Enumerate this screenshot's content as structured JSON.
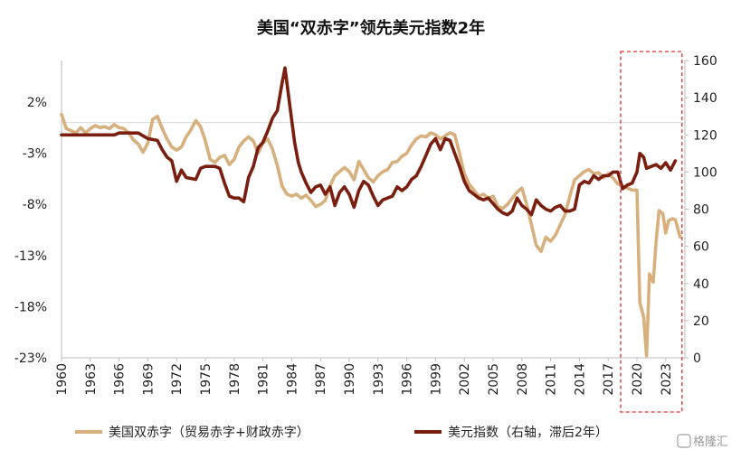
{
  "chart_data": {
    "type": "line",
    "title": "美国“双赤字”领先美元指数2年",
    "x_ticks": [
      "1960",
      "1963",
      "1966",
      "1969",
      "1972",
      "1975",
      "1978",
      "1981",
      "1984",
      "1987",
      "1990",
      "1993",
      "1996",
      "1999",
      "2002",
      "2005",
      "2008",
      "2011",
      "2014",
      "2017",
      "2020",
      "2023"
    ],
    "x_range": [
      1960,
      2025
    ],
    "left_axis": {
      "ticks": [
        "2%",
        "-3%",
        "-8%",
        "-13%",
        "-18%",
        "-23%"
      ],
      "range": [
        -23,
        2
      ],
      "unit": "%"
    },
    "right_axis": {
      "ticks": [
        "160",
        "140",
        "120",
        "100",
        "80",
        "60",
        "40",
        "20",
        "0"
      ],
      "range": [
        0,
        160
      ]
    },
    "reference_line": {
      "axis": "left",
      "value": 0
    },
    "highlight": {
      "x_range": [
        2018.3,
        2024.7
      ],
      "style": "dashed",
      "color": "#e03030"
    },
    "legend_position": "bottom",
    "series": [
      {
        "name": "美国双赤字（贸易赤字+财政赤字）",
        "axis": "left",
        "color": "#d8b07e",
        "points": [
          [
            1960.0,
            0.8
          ],
          [
            1960.5,
            -0.6
          ],
          [
            1961.0,
            -0.8
          ],
          [
            1961.5,
            -1.0
          ],
          [
            1962.0,
            -0.5
          ],
          [
            1962.5,
            -1.0
          ],
          [
            1963.0,
            -0.6
          ],
          [
            1963.5,
            -0.3
          ],
          [
            1964.0,
            -0.5
          ],
          [
            1964.5,
            -0.4
          ],
          [
            1965.0,
            -0.6
          ],
          [
            1965.5,
            -0.2
          ],
          [
            1966.0,
            -0.5
          ],
          [
            1966.5,
            -0.6
          ],
          [
            1967.0,
            -1.0
          ],
          [
            1967.5,
            -1.7
          ],
          [
            1968.0,
            -2.1
          ],
          [
            1968.5,
            -2.9
          ],
          [
            1969.0,
            -2.0
          ],
          [
            1969.5,
            0.3
          ],
          [
            1970.0,
            0.6
          ],
          [
            1970.5,
            -0.6
          ],
          [
            1971.0,
            -1.6
          ],
          [
            1971.5,
            -2.4
          ],
          [
            1972.0,
            -2.7
          ],
          [
            1972.5,
            -2.4
          ],
          [
            1973.0,
            -1.4
          ],
          [
            1973.5,
            -0.7
          ],
          [
            1974.0,
            0.2
          ],
          [
            1974.5,
            -0.4
          ],
          [
            1975.0,
            -1.8
          ],
          [
            1975.5,
            -3.6
          ],
          [
            1976.0,
            -3.9
          ],
          [
            1976.5,
            -3.4
          ],
          [
            1977.0,
            -3.2
          ],
          [
            1977.5,
            -4.1
          ],
          [
            1978.0,
            -3.6
          ],
          [
            1978.5,
            -2.4
          ],
          [
            1979.0,
            -1.8
          ],
          [
            1979.5,
            -1.4
          ],
          [
            1980.0,
            -1.8
          ],
          [
            1980.5,
            -3.0
          ],
          [
            1981.0,
            -2.0
          ],
          [
            1981.5,
            -1.6
          ],
          [
            1982.0,
            -2.6
          ],
          [
            1982.5,
            -4.2
          ],
          [
            1983.0,
            -6.2
          ],
          [
            1983.5,
            -7.0
          ],
          [
            1984.0,
            -7.2
          ],
          [
            1984.5,
            -7.0
          ],
          [
            1985.0,
            -7.4
          ],
          [
            1985.5,
            -7.1
          ],
          [
            1986.0,
            -7.6
          ],
          [
            1986.5,
            -8.2
          ],
          [
            1987.0,
            -8.0
          ],
          [
            1987.5,
            -7.6
          ],
          [
            1988.0,
            -6.2
          ],
          [
            1988.5,
            -5.2
          ],
          [
            1989.0,
            -4.8
          ],
          [
            1989.5,
            -4.4
          ],
          [
            1990.0,
            -4.8
          ],
          [
            1990.5,
            -5.6
          ],
          [
            1991.0,
            -3.8
          ],
          [
            1991.5,
            -4.6
          ],
          [
            1992.0,
            -5.4
          ],
          [
            1992.5,
            -5.8
          ],
          [
            1993.0,
            -5.2
          ],
          [
            1993.5,
            -4.8
          ],
          [
            1994.0,
            -4.6
          ],
          [
            1994.5,
            -3.9
          ],
          [
            1995.0,
            -3.8
          ],
          [
            1995.5,
            -3.3
          ],
          [
            1996.0,
            -3.0
          ],
          [
            1996.5,
            -2.2
          ],
          [
            1997.0,
            -1.6
          ],
          [
            1997.5,
            -1.3
          ],
          [
            1998.0,
            -1.4
          ],
          [
            1998.5,
            -1.0
          ],
          [
            1999.0,
            -1.2
          ],
          [
            1999.5,
            -1.6
          ],
          [
            2000.0,
            -1.3
          ],
          [
            2000.5,
            -1.0
          ],
          [
            2001.0,
            -1.2
          ],
          [
            2001.5,
            -3.0
          ],
          [
            2002.0,
            -5.0
          ],
          [
            2002.5,
            -6.0
          ],
          [
            2003.0,
            -6.6
          ],
          [
            2003.5,
            -7.2
          ],
          [
            2004.0,
            -7.0
          ],
          [
            2004.5,
            -7.4
          ],
          [
            2005.0,
            -7.2
          ],
          [
            2005.5,
            -8.2
          ],
          [
            2006.0,
            -8.4
          ],
          [
            2006.5,
            -8.0
          ],
          [
            2007.0,
            -7.4
          ],
          [
            2007.5,
            -6.8
          ],
          [
            2008.0,
            -6.4
          ],
          [
            2008.5,
            -8.0
          ],
          [
            2009.0,
            -10.0
          ],
          [
            2009.5,
            -12.0
          ],
          [
            2010.0,
            -12.6
          ],
          [
            2010.5,
            -11.2
          ],
          [
            2011.0,
            -11.6
          ],
          [
            2011.5,
            -11.0
          ],
          [
            2012.0,
            -10.0
          ],
          [
            2012.5,
            -9.0
          ],
          [
            2013.0,
            -7.2
          ],
          [
            2013.5,
            -5.6
          ],
          [
            2014.0,
            -5.2
          ],
          [
            2014.5,
            -4.8
          ],
          [
            2015.0,
            -4.6
          ],
          [
            2015.5,
            -5.0
          ],
          [
            2016.0,
            -4.9
          ],
          [
            2016.5,
            -5.4
          ],
          [
            2017.0,
            -5.0
          ],
          [
            2017.5,
            -5.4
          ],
          [
            2018.0,
            -6.0
          ],
          [
            2018.5,
            -6.2
          ],
          [
            2019.0,
            -6.4
          ],
          [
            2019.5,
            -6.6
          ],
          [
            2020.0,
            -6.6
          ],
          [
            2020.3,
            -17.6
          ],
          [
            2020.7,
            -19.0
          ],
          [
            2021.0,
            -22.8
          ],
          [
            2021.3,
            -14.8
          ],
          [
            2021.7,
            -15.6
          ],
          [
            2022.0,
            -11.6
          ],
          [
            2022.3,
            -8.6
          ],
          [
            2022.7,
            -8.9
          ],
          [
            2023.0,
            -10.8
          ],
          [
            2023.3,
            -9.6
          ],
          [
            2023.7,
            -9.4
          ],
          [
            2024.0,
            -9.5
          ],
          [
            2024.5,
            -11.2
          ]
        ]
      },
      {
        "name": "美元指数（右轴，滞后2年）",
        "axis": "right",
        "color": "#7a1e10",
        "points": [
          [
            1960.0,
            120
          ],
          [
            1962.0,
            120
          ],
          [
            1964.0,
            120
          ],
          [
            1965.5,
            120
          ],
          [
            1966.0,
            121
          ],
          [
            1967.0,
            121
          ],
          [
            1968.0,
            121
          ],
          [
            1969.0,
            118
          ],
          [
            1970.0,
            117
          ],
          [
            1970.5,
            112
          ],
          [
            1971.0,
            108
          ],
          [
            1971.5,
            106
          ],
          [
            1972.0,
            95
          ],
          [
            1972.5,
            101
          ],
          [
            1973.0,
            97
          ],
          [
            1974.0,
            96
          ],
          [
            1974.5,
            102
          ],
          [
            1975.0,
            103
          ],
          [
            1975.5,
            103
          ],
          [
            1976.0,
            103
          ],
          [
            1976.5,
            102
          ],
          [
            1977.0,
            94
          ],
          [
            1977.5,
            87
          ],
          [
            1978.0,
            86
          ],
          [
            1978.5,
            86
          ],
          [
            1979.0,
            84
          ],
          [
            1979.5,
            97
          ],
          [
            1980.0,
            103
          ],
          [
            1980.5,
            113
          ],
          [
            1981.0,
            116
          ],
          [
            1981.5,
            122
          ],
          [
            1982.0,
            129
          ],
          [
            1982.5,
            133
          ],
          [
            1983.0,
            148
          ],
          [
            1983.3,
            156
          ],
          [
            1983.7,
            140
          ],
          [
            1984.0,
            128
          ],
          [
            1984.3,
            116
          ],
          [
            1984.7,
            105
          ],
          [
            1985.0,
            100
          ],
          [
            1985.5,
            94
          ],
          [
            1986.0,
            89
          ],
          [
            1986.5,
            92
          ],
          [
            1987.0,
            93
          ],
          [
            1987.5,
            88
          ],
          [
            1988.0,
            92
          ],
          [
            1988.5,
            82
          ],
          [
            1989.0,
            89
          ],
          [
            1989.5,
            92
          ],
          [
            1990.0,
            88
          ],
          [
            1990.5,
            81
          ],
          [
            1991.0,
            90
          ],
          [
            1991.5,
            95
          ],
          [
            1992.0,
            93
          ],
          [
            1992.5,
            87
          ],
          [
            1993.0,
            82
          ],
          [
            1993.5,
            85
          ],
          [
            1994.0,
            86
          ],
          [
            1994.5,
            87
          ],
          [
            1995.0,
            92
          ],
          [
            1995.5,
            90
          ],
          [
            1996.0,
            92
          ],
          [
            1996.5,
            96
          ],
          [
            1997.0,
            98
          ],
          [
            1997.5,
            103
          ],
          [
            1998.0,
            109
          ],
          [
            1998.5,
            115
          ],
          [
            1999.0,
            118
          ],
          [
            1999.5,
            112
          ],
          [
            2000.0,
            118
          ],
          [
            2000.5,
            117
          ],
          [
            2001.0,
            110
          ],
          [
            2001.5,
            103
          ],
          [
            2002.0,
            95
          ],
          [
            2002.5,
            90
          ],
          [
            2003.0,
            88
          ],
          [
            2003.5,
            86
          ],
          [
            2004.0,
            85
          ],
          [
            2004.5,
            86
          ],
          [
            2005.0,
            83
          ],
          [
            2005.5,
            80
          ],
          [
            2006.0,
            78
          ],
          [
            2006.5,
            77
          ],
          [
            2007.0,
            79
          ],
          [
            2007.5,
            86
          ],
          [
            2008.0,
            82
          ],
          [
            2008.5,
            80
          ],
          [
            2009.0,
            77
          ],
          [
            2009.5,
            85
          ],
          [
            2010.0,
            82
          ],
          [
            2010.5,
            80
          ],
          [
            2011.0,
            79
          ],
          [
            2011.5,
            81
          ],
          [
            2012.0,
            82
          ],
          [
            2012.5,
            79
          ],
          [
            2013.0,
            79
          ],
          [
            2013.5,
            80
          ],
          [
            2014.0,
            93
          ],
          [
            2014.5,
            95
          ],
          [
            2015.0,
            94
          ],
          [
            2015.5,
            98
          ],
          [
            2016.0,
            96
          ],
          [
            2016.5,
            98
          ],
          [
            2017.0,
            98
          ],
          [
            2017.5,
            100
          ],
          [
            2018.0,
            100
          ],
          [
            2018.5,
            91
          ],
          [
            2019.0,
            93
          ],
          [
            2019.5,
            94
          ],
          [
            2020.0,
            100
          ],
          [
            2020.3,
            110
          ],
          [
            2020.7,
            108
          ],
          [
            2021.0,
            102
          ],
          [
            2021.5,
            103
          ],
          [
            2022.0,
            104
          ],
          [
            2022.5,
            102
          ],
          [
            2023.0,
            105
          ],
          [
            2023.5,
            101
          ],
          [
            2024.0,
            106
          ]
        ]
      }
    ]
  },
  "watermark": "格隆汇"
}
